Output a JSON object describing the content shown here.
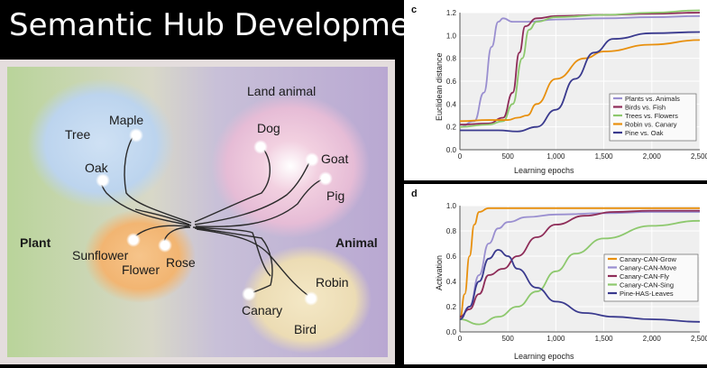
{
  "title": "Semantic Hub Development",
  "hub": {
    "regions": {
      "plant": "Plant",
      "animal": "Animal",
      "tree": "Tree",
      "flower": "Flower",
      "land_animal": "Land animal",
      "bird": "Bird"
    },
    "nodes": {
      "maple": "Maple",
      "oak": "Oak",
      "sunflower": "Sunflower",
      "rose": "Rose",
      "dog": "Dog",
      "goat": "Goat",
      "pig": "Pig",
      "canary": "Canary",
      "robin": "Robin"
    }
  },
  "colors": {
    "plants_vs_animals": "#9a8fd0",
    "birds_vs_fish": "#8e2c58",
    "trees_vs_flowers": "#8dc86d",
    "robin_vs_canary": "#e8900e",
    "pine_vs_oak": "#3a3a8e",
    "canary_can_grow": "#e8900e",
    "canary_can_move": "#9a8fd0",
    "canary_can_fly": "#8e2c58",
    "canary_can_sing": "#8dc86d",
    "pine_has_leaves": "#3a3a8e"
  },
  "chart_data": [
    {
      "type": "line",
      "panel_label": "c",
      "xlabel": "Learning epochs",
      "ylabel": "Euclidean distance",
      "xlim": [
        0,
        2500
      ],
      "ylim": [
        0,
        1.2
      ],
      "xticks": [
        "0",
        "500",
        "1,000",
        "1,500",
        "2,000",
        "2,500"
      ],
      "yticks": [
        "0.0",
        "0.2",
        "0.4",
        "0.6",
        "0.8",
        "1.0",
        "1.2"
      ],
      "legend_position": "bottom-right",
      "series": [
        {
          "name": "Plants vs. Animals",
          "x": [
            0,
            150,
            250,
            330,
            400,
            450,
            550,
            700,
            1000,
            1500,
            2000,
            2500
          ],
          "y": [
            0.2,
            0.25,
            0.5,
            0.9,
            1.12,
            1.15,
            1.12,
            1.12,
            1.14,
            1.15,
            1.16,
            1.17
          ]
        },
        {
          "name": "Birds vs. Fish",
          "x": [
            0,
            300,
            450,
            550,
            620,
            680,
            800,
            1000,
            1500,
            2000,
            2500
          ],
          "y": [
            0.22,
            0.23,
            0.28,
            0.5,
            0.85,
            1.08,
            1.15,
            1.17,
            1.18,
            1.19,
            1.2
          ]
        },
        {
          "name": "Trees vs. Flowers",
          "x": [
            0,
            300,
            450,
            550,
            650,
            720,
            800,
            1000,
            1500,
            2000,
            2500
          ],
          "y": [
            0.2,
            0.22,
            0.25,
            0.4,
            0.8,
            1.05,
            1.12,
            1.16,
            1.18,
            1.2,
            1.22
          ]
        },
        {
          "name": "Robin vs. Canary",
          "x": [
            0,
            300,
            500,
            600,
            700,
            800,
            1000,
            1300,
            1500,
            2000,
            2500
          ],
          "y": [
            0.25,
            0.26,
            0.26,
            0.28,
            0.3,
            0.4,
            0.62,
            0.8,
            0.86,
            0.92,
            0.96
          ]
        },
        {
          "name": "Pine vs. Oak",
          "x": [
            0,
            400,
            600,
            800,
            1000,
            1200,
            1400,
            1600,
            2000,
            2500
          ],
          "y": [
            0.17,
            0.17,
            0.16,
            0.2,
            0.35,
            0.62,
            0.85,
            0.97,
            1.02,
            1.03
          ]
        }
      ]
    },
    {
      "type": "line",
      "panel_label": "d",
      "xlabel": "Learning epochs",
      "ylabel": "Activation",
      "xlim": [
        0,
        2500
      ],
      "ylim": [
        0,
        1.0
      ],
      "xticks": [
        "0",
        "500",
        "1,000",
        "1,500",
        "2,000",
        "2,500"
      ],
      "yticks": [
        "0.0",
        "0.2",
        "0.4",
        "0.6",
        "0.8",
        "1.0"
      ],
      "legend_position": "bottom-right",
      "series": [
        {
          "name": "Canary-CAN-Grow",
          "x": [
            0,
            50,
            100,
            150,
            200,
            300,
            500,
            1000,
            2500
          ],
          "y": [
            0.1,
            0.3,
            0.6,
            0.85,
            0.95,
            0.98,
            0.98,
            0.98,
            0.98
          ]
        },
        {
          "name": "Canary-CAN-Move",
          "x": [
            0,
            100,
            200,
            300,
            400,
            500,
            700,
            1000,
            1500,
            2000,
            2500
          ],
          "y": [
            0.1,
            0.2,
            0.45,
            0.7,
            0.82,
            0.87,
            0.91,
            0.93,
            0.94,
            0.95,
            0.95
          ]
        },
        {
          "name": "Canary-CAN-Fly",
          "x": [
            0,
            100,
            200,
            300,
            450,
            600,
            800,
            1000,
            1300,
            1600,
            2000,
            2500
          ],
          "y": [
            0.12,
            0.18,
            0.3,
            0.45,
            0.5,
            0.6,
            0.75,
            0.85,
            0.92,
            0.95,
            0.96,
            0.96
          ]
        },
        {
          "name": "Canary-CAN-Sing",
          "x": [
            0,
            200,
            400,
            600,
            800,
            1000,
            1200,
            1500,
            2000,
            2500
          ],
          "y": [
            0.1,
            0.06,
            0.12,
            0.2,
            0.32,
            0.48,
            0.62,
            0.74,
            0.84,
            0.88
          ]
        },
        {
          "name": "Pine-HAS-Leaves",
          "x": [
            0,
            100,
            200,
            300,
            400,
            500,
            600,
            800,
            1000,
            1300,
            1600,
            2000,
            2500
          ],
          "y": [
            0.1,
            0.2,
            0.4,
            0.58,
            0.65,
            0.6,
            0.5,
            0.35,
            0.24,
            0.15,
            0.12,
            0.1,
            0.08
          ]
        }
      ]
    }
  ]
}
